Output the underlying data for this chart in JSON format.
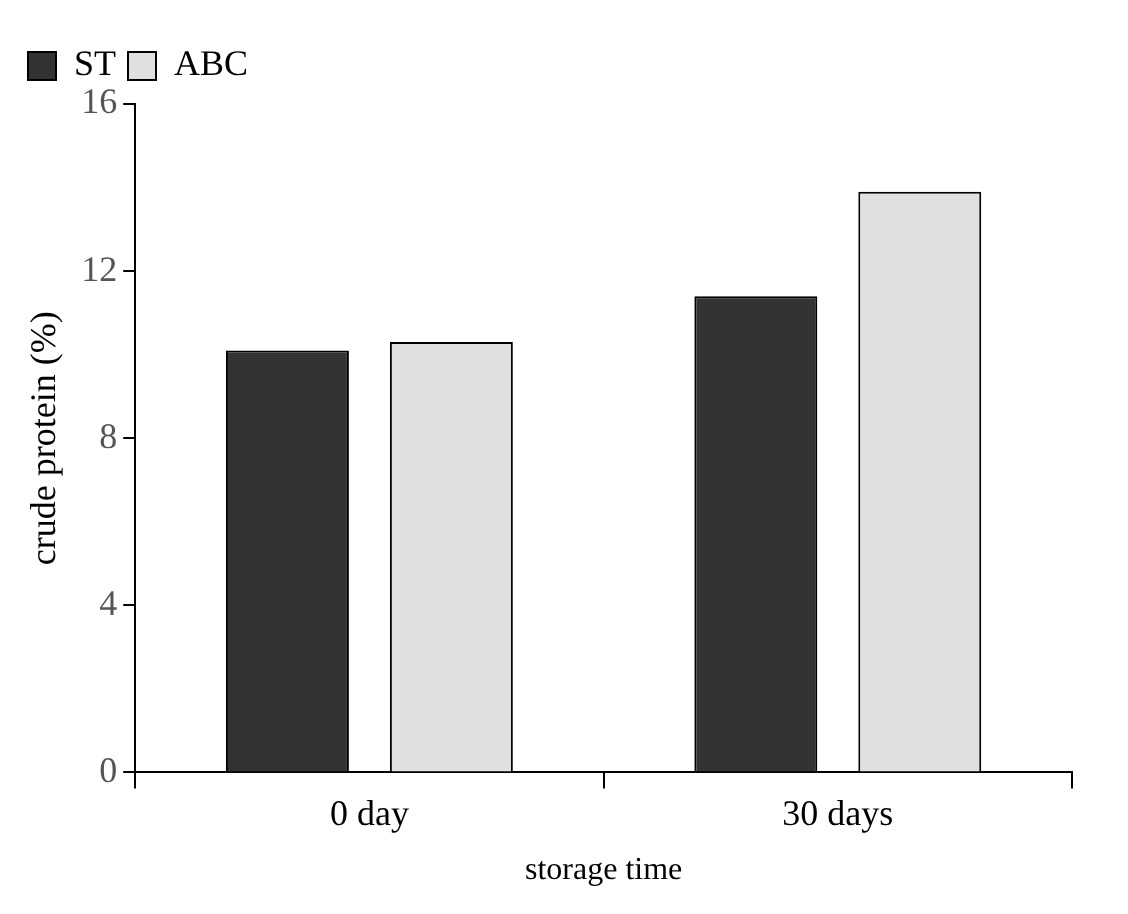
{
  "chart_data": {
    "type": "bar",
    "xlabel": "storage time",
    "ylabel": "crude protein (%)",
    "categories": [
      "0 day",
      "30 days"
    ],
    "series": [
      {
        "name": "ST",
        "color": "#333333",
        "values": [
          10.1,
          11.4
        ]
      },
      {
        "name": "ABC",
        "color": "#e0e0e0",
        "values": [
          10.3,
          13.9
        ]
      }
    ],
    "ylim": [
      0,
      16
    ],
    "yticks": [
      0,
      4,
      8,
      12,
      16
    ],
    "grid": false,
    "legend": "top left"
  }
}
